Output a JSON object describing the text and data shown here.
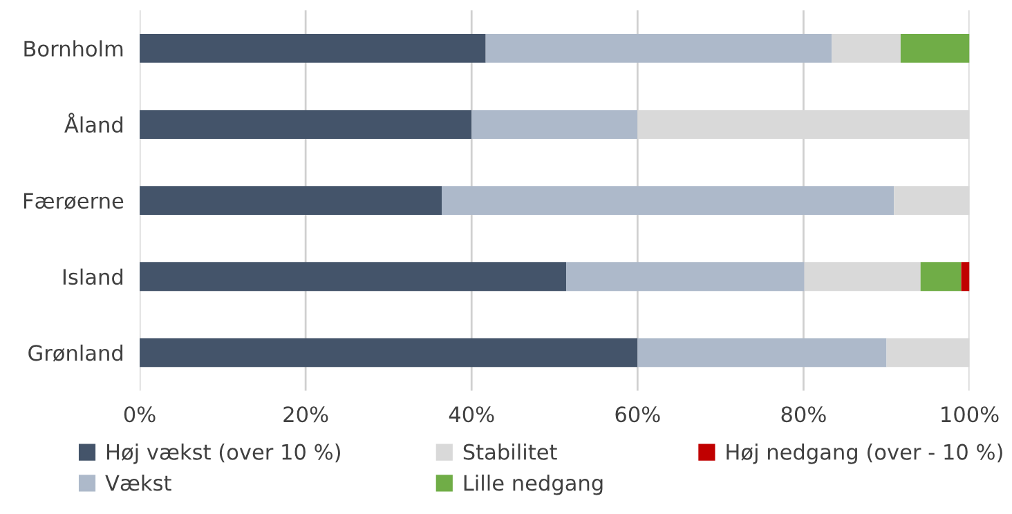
{
  "chart_data": {
    "type": "bar",
    "orientation": "horizontal",
    "stacked": true,
    "categories": [
      "Bornholm",
      "Åland",
      "Færøerne",
      "Island",
      "Grønland"
    ],
    "series": [
      {
        "name": "Høj vækst (over 10 %)",
        "color": "#44546a",
        "values": [
          41.7,
          40,
          36.4,
          51.4,
          60
        ]
      },
      {
        "name": "Vækst",
        "color": "#adb9ca",
        "values": [
          41.7,
          20,
          54.5,
          28.7,
          30
        ]
      },
      {
        "name": "Stabilitet",
        "color": "#d9d9d9",
        "values": [
          8.3,
          40,
          9.1,
          14.0,
          10
        ]
      },
      {
        "name": "Lille nedgang",
        "color": "#70ad47",
        "values": [
          8.3,
          0,
          0,
          4.9,
          0
        ]
      },
      {
        "name": "Høj nedgang (over - 10 %)",
        "color": "#c00000",
        "values": [
          0,
          0,
          0,
          1.0,
          0
        ]
      }
    ],
    "xlim": [
      0,
      100
    ],
    "xticks": [
      {
        "value": 0,
        "label": "0%"
      },
      {
        "value": 20,
        "label": "20%"
      },
      {
        "value": 40,
        "label": "40%"
      },
      {
        "value": 60,
        "label": "60%"
      },
      {
        "value": 80,
        "label": "80%"
      },
      {
        "value": 100,
        "label": "100%"
      }
    ],
    "grid": "x",
    "legend": "bottom"
  }
}
